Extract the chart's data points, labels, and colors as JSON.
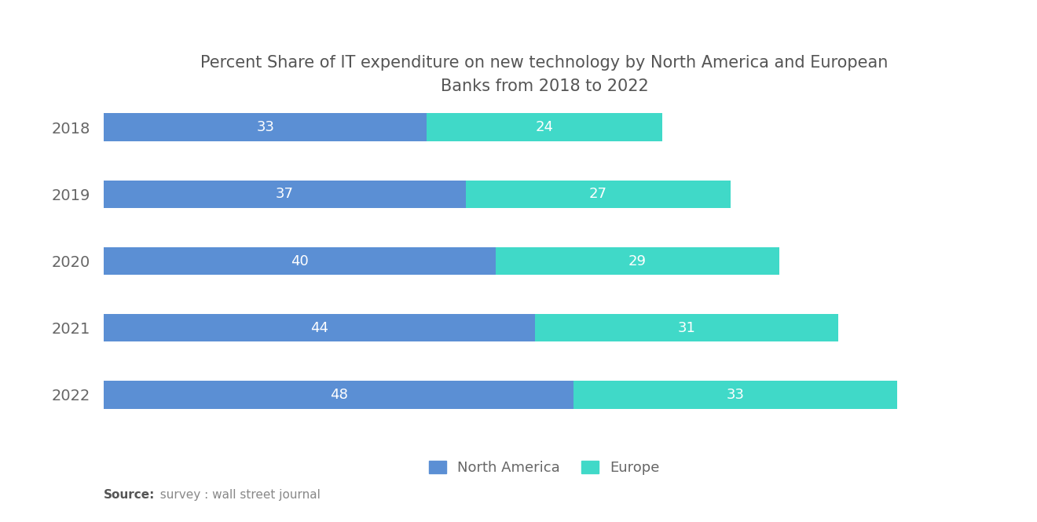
{
  "title": "Percent Share of IT expenditure on new technology by North America and European\nBanks from 2018 to 2022",
  "years": [
    "2018",
    "2019",
    "2020",
    "2021",
    "2022"
  ],
  "north_america": [
    33,
    37,
    40,
    44,
    48
  ],
  "europe": [
    24,
    27,
    29,
    31,
    33
  ],
  "color_na": "#5B8FD4",
  "color_eu": "#40D9C8",
  "background_color": "#ffffff",
  "label_na": "North America",
  "label_eu": "Europe",
  "source_bold": "Source:",
  "source_rest": "  survey : wall street journal",
  "title_fontsize": 15,
  "label_fontsize": 13,
  "tick_fontsize": 14,
  "bar_height": 0.42,
  "xlim": 90
}
